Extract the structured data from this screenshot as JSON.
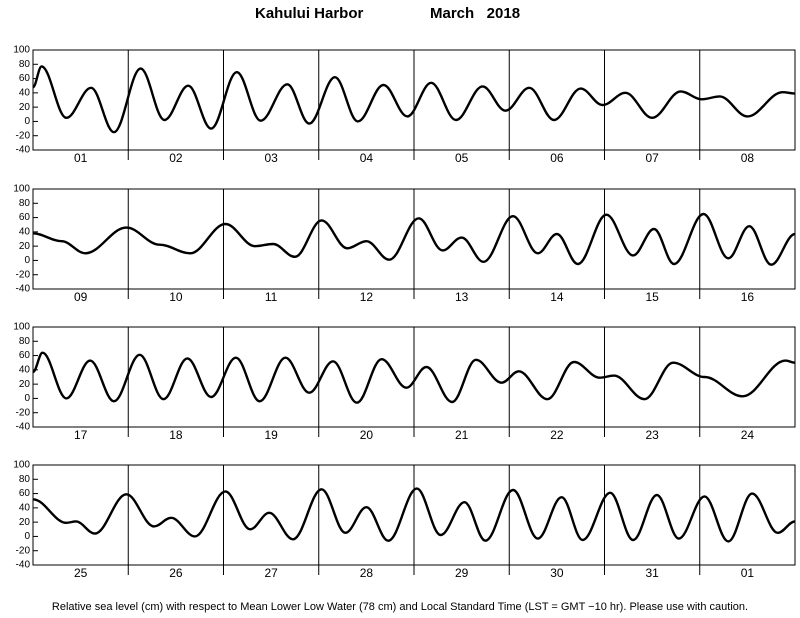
{
  "title": "Kahului Harbor",
  "subtitle": "March   2018",
  "note": "Relative sea level (cm) with respect to Mean Lower Low Water (78 cm) and Local Standard Time (LST = GMT −10 hr). Please use with caution.",
  "chart_data": [
    {
      "type": "line",
      "categories": [
        "01",
        "02",
        "03",
        "04",
        "05",
        "06",
        "07",
        "08"
      ],
      "xlim": [
        0,
        8
      ],
      "ylim": [
        -40,
        100
      ],
      "yticks": [
        -40,
        -20,
        0,
        20,
        40,
        60,
        80,
        100
      ],
      "color": "#000000",
      "x": [
        0,
        0.09,
        0.35,
        0.61,
        0.85,
        1.13,
        1.38,
        1.63,
        1.87,
        2.14,
        2.39,
        2.67,
        2.9,
        3.17,
        3.41,
        3.68,
        3.93,
        4.18,
        4.44,
        4.72,
        4.96,
        5.21,
        5.47,
        5.75,
        5.98,
        6.22,
        6.5,
        6.8,
        7.02,
        7.21,
        7.5,
        7.87,
        8
      ],
      "values": [
        48,
        77,
        5,
        47,
        -15,
        74,
        2,
        50,
        -10,
        69,
        1,
        52,
        -3,
        62,
        0,
        51,
        7,
        54,
        2,
        49,
        15,
        47,
        2,
        46,
        23,
        40,
        5,
        42,
        31,
        35,
        7,
        41,
        39
      ]
    },
    {
      "type": "line",
      "categories": [
        "09",
        "10",
        "11",
        "12",
        "13",
        "14",
        "15",
        "16"
      ],
      "xlim": [
        0,
        8
      ],
      "ylim": [
        -40,
        100
      ],
      "yticks": [
        -40,
        -20,
        0,
        20,
        40,
        60,
        80,
        100
      ],
      "color": "#000000",
      "x": [
        0,
        0.3,
        0.55,
        0.98,
        1.33,
        1.65,
        2.02,
        2.33,
        2.52,
        2.75,
        3.03,
        3.3,
        3.5,
        3.74,
        4.05,
        4.3,
        4.5,
        4.73,
        5.04,
        5.3,
        5.5,
        5.72,
        6.02,
        6.3,
        6.52,
        6.73,
        7.04,
        7.3,
        7.52,
        7.75,
        8
      ],
      "values": [
        38,
        27,
        10,
        46,
        22,
        10,
        51,
        20,
        23,
        5,
        56,
        17,
        27,
        1,
        59,
        14,
        32,
        -2,
        62,
        10,
        37,
        -5,
        64,
        7,
        44,
        -5,
        65,
        3,
        48,
        -6,
        37
      ]
    },
    {
      "type": "line",
      "categories": [
        "17",
        "18",
        "19",
        "20",
        "21",
        "22",
        "23",
        "24"
      ],
      "xlim": [
        0,
        8
      ],
      "ylim": [
        -40,
        100
      ],
      "yticks": [
        -40,
        -20,
        0,
        20,
        40,
        60,
        80,
        100
      ],
      "color": "#000000",
      "x": [
        0,
        0.1,
        0.35,
        0.6,
        0.85,
        1.12,
        1.37,
        1.62,
        1.87,
        2.13,
        2.38,
        2.65,
        2.9,
        3.15,
        3.4,
        3.66,
        3.92,
        4.13,
        4.4,
        4.65,
        4.92,
        5.1,
        5.4,
        5.68,
        5.95,
        6.1,
        6.42,
        6.72,
        7.05,
        7.45,
        7.9,
        8
      ],
      "values": [
        37,
        64,
        0,
        53,
        -4,
        61,
        -1,
        56,
        2,
        57,
        -4,
        57,
        8,
        52,
        -6,
        55,
        15,
        44,
        -5,
        54,
        22,
        38,
        -1,
        51,
        29,
        32,
        -1,
        50,
        30,
        3,
        53,
        50
      ]
    },
    {
      "type": "line",
      "categories": [
        "25",
        "26",
        "27",
        "28",
        "29",
        "30",
        "31",
        "01"
      ],
      "xlim": [
        0,
        8
      ],
      "ylim": [
        -40,
        100
      ],
      "yticks": [
        -40,
        -20,
        0,
        20,
        40,
        60,
        80,
        100
      ],
      "color": "#000000",
      "x": [
        0,
        0.35,
        0.45,
        0.65,
        0.98,
        1.27,
        1.45,
        1.7,
        2.02,
        2.28,
        2.48,
        2.73,
        3.03,
        3.28,
        3.5,
        3.73,
        4.03,
        4.28,
        4.53,
        4.75,
        5.04,
        5.3,
        5.55,
        5.77,
        6.06,
        6.3,
        6.55,
        6.78,
        7.05,
        7.3,
        7.55,
        7.82,
        8
      ],
      "values": [
        52,
        19,
        21,
        4,
        59,
        14,
        26,
        0,
        63,
        10,
        33,
        -4,
        66,
        5,
        41,
        -6,
        67,
        2,
        48,
        -6,
        65,
        -3,
        55,
        -5,
        61,
        -5,
        58,
        -3,
        56,
        -7,
        60,
        5,
        21
      ]
    }
  ]
}
